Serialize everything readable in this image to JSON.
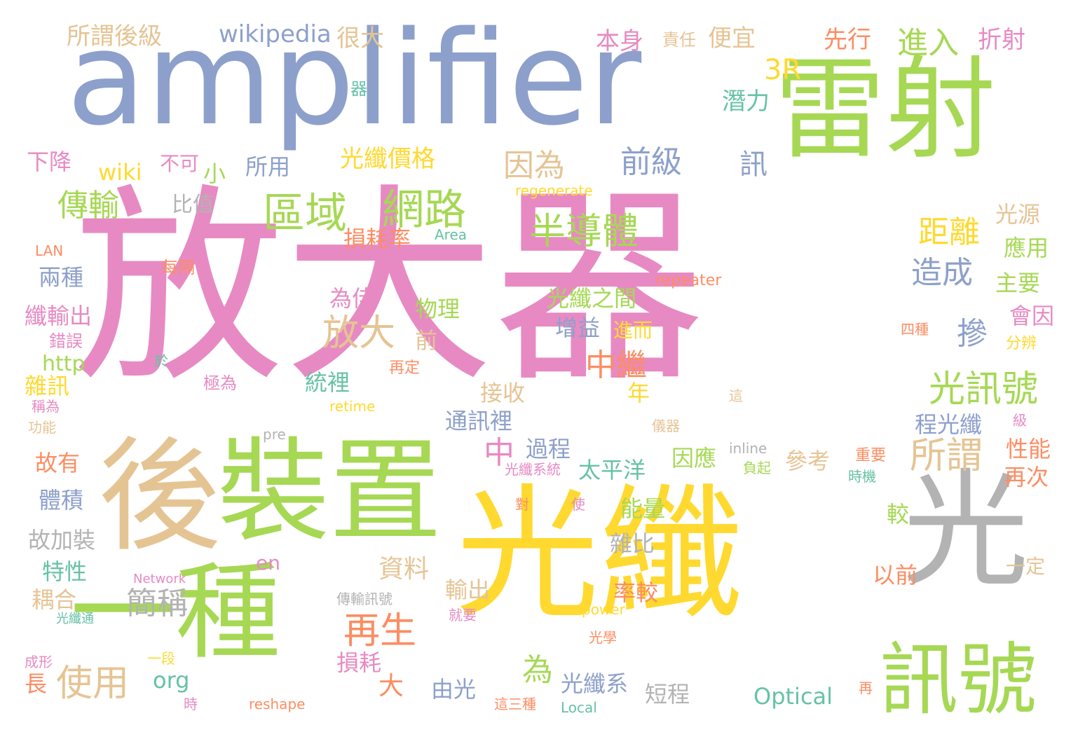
{
  "palette": {
    "pink": "#e78ac3",
    "green": "#a6d854",
    "blue": "#8da0cb",
    "yellow": "#ffd92f",
    "tan": "#e5c494",
    "grey": "#b3b3b3",
    "orange": "#fc8d62",
    "teal": "#66c2a5"
  },
  "words": [
    "放大器",
    "amplifier",
    "雷射",
    "光纖",
    "後",
    "裝置",
    "一種",
    "光",
    "訊號",
    "區域",
    "網路",
    "半導體",
    "光訊號",
    "傳輸",
    "因為",
    "前級",
    "放大",
    "摻",
    "所謂",
    "距離",
    "造成",
    "中繼",
    "再生",
    "使用",
    "簡稱",
    "為",
    "中",
    "進入",
    "3R",
    "wikipedia",
    "所謂後級",
    "很大",
    "本身",
    "便宜",
    "先行",
    "折射",
    "責任",
    "潛力",
    "器",
    "下降",
    "不可",
    "wiki",
    "小",
    "所用",
    "光纖價格",
    "訊",
    "比值",
    "regenerate",
    "光源",
    "應用",
    "主要",
    "LAN",
    "Area",
    "損耗率",
    "每隔",
    "兩種",
    "repeater",
    "為佳",
    "物理",
    "光纖之間",
    "會因",
    "纖輸出",
    "增益",
    "進而",
    "錯誤",
    "前",
    "四種",
    "分辨",
    "於",
    "http",
    "再定",
    "雜訊",
    "極為",
    "統裡",
    "年",
    "稱為",
    "retime",
    "接收",
    "程光纖",
    "通訊裡",
    "這",
    "功能",
    "pre",
    "儀器",
    "級",
    "過程",
    "inline",
    "性能",
    "故有",
    "因應",
    "參考",
    "重要",
    "光纖系統",
    "太平洋",
    "再次",
    "負起",
    "時機",
    "體積",
    "對",
    "使",
    "能量",
    "較",
    "故加裝",
    "雜比",
    "en",
    "特性",
    "Network",
    "一定",
    "以前",
    "率較",
    "輸出",
    "資料",
    "耦合",
    "傳輸訊號",
    "光纖通",
    "power",
    "就要",
    "光學",
    "一段",
    "成形",
    "損耗",
    "長",
    "大",
    "光纖系",
    "org",
    "由光",
    "短程",
    "Optical",
    "再",
    "時",
    "reshape",
    "這三種",
    "Local"
  ]
}
